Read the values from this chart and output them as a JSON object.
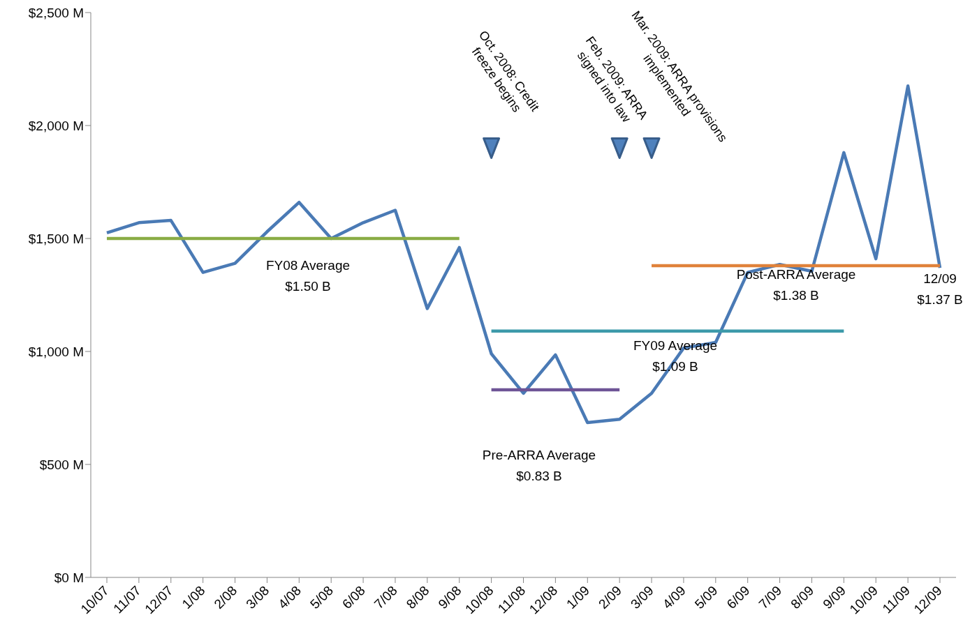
{
  "chart_data": {
    "type": "line",
    "categories": [
      "10/07",
      "11/07",
      "12/07",
      "1/08",
      "2/08",
      "3/08",
      "4/08",
      "5/08",
      "6/08",
      "7/08",
      "8/08",
      "9/08",
      "10/08",
      "11/08",
      "12/08",
      "1/09",
      "2/09",
      "3/09",
      "4/09",
      "5/09",
      "6/09",
      "7/09",
      "8/09",
      "9/09",
      "10/09",
      "11/09",
      "12/09"
    ],
    "series": [
      {
        "color": "#4a7ab5",
        "values": [
          1525,
          1570,
          1580,
          1350,
          1390,
          1530,
          1660,
          1500,
          1570,
          1625,
          1190,
          1460,
          990,
          815,
          985,
          685,
          700,
          815,
          1015,
          1040,
          1350,
          1385,
          1355,
          1880,
          1410,
          2175,
          1370
        ]
      },
      {
        "color": "#8aac45",
        "values": [
          1500,
          1500,
          1500,
          1500,
          1500,
          1500,
          1500,
          1500,
          1500,
          1500,
          1500,
          1500,
          null,
          null,
          null,
          null,
          null,
          null,
          null,
          null,
          null,
          null,
          null,
          null,
          null,
          null,
          null
        ]
      },
      {
        "color": "#3d9aaa",
        "values": [
          null,
          null,
          null,
          null,
          null,
          null,
          null,
          null,
          null,
          null,
          null,
          null,
          1090,
          1090,
          1090,
          1090,
          1090,
          1090,
          1090,
          1090,
          1090,
          1090,
          1090,
          1090,
          null,
          null,
          null
        ]
      },
      {
        "color": "#6e5496",
        "values": [
          null,
          null,
          null,
          null,
          null,
          null,
          null,
          null,
          null,
          null,
          null,
          null,
          830,
          830,
          830,
          830,
          830,
          null,
          null,
          null,
          null,
          null,
          null,
          null,
          null,
          null,
          null
        ]
      },
      {
        "color": "#e0823a",
        "values": [
          null,
          null,
          null,
          null,
          null,
          null,
          null,
          null,
          null,
          null,
          null,
          null,
          null,
          null,
          null,
          null,
          null,
          1380,
          1380,
          1380,
          1380,
          1380,
          1380,
          1380,
          1380,
          1380,
          1380
        ]
      },
      {
        "type": "scatter",
        "marker": "triangle",
        "color": "#4f81bd",
        "values": [
          null,
          null,
          null,
          null,
          null,
          null,
          null,
          null,
          null,
          null,
          null,
          null,
          1900,
          null,
          null,
          null,
          1900,
          1900,
          null,
          null,
          null,
          null,
          null,
          null,
          null,
          null,
          null
        ]
      }
    ],
    "ylim": [
      0,
      2500
    ],
    "yticks": [
      {
        "value": 0,
        "label": "$0 M"
      },
      {
        "value": 500,
        "label": "$500 M"
      },
      {
        "value": 1000,
        "label": "$1,000 M"
      },
      {
        "value": 1500,
        "label": "$1,500 M"
      },
      {
        "value": 2000,
        "label": "$2,000 M"
      },
      {
        "value": 2500,
        "label": "$2,500 M"
      }
    ],
    "annotations": [
      "Oct. 2008: Credit\nfreeze begins",
      "Feb. 2009: ARRA\nsigned into law",
      "Mar. 2009: ARRA provisions\nimplemented",
      "FY08 Average\n$1.50 B",
      "Pre-ARRA Average\n$0.83 B",
      "FY09 Average\n$1.09 B",
      "Post-ARRA Average\n$1.38 B",
      "12/09\n$1.37 B"
    ],
    "grid": false,
    "legend": false,
    "marker": "none"
  }
}
